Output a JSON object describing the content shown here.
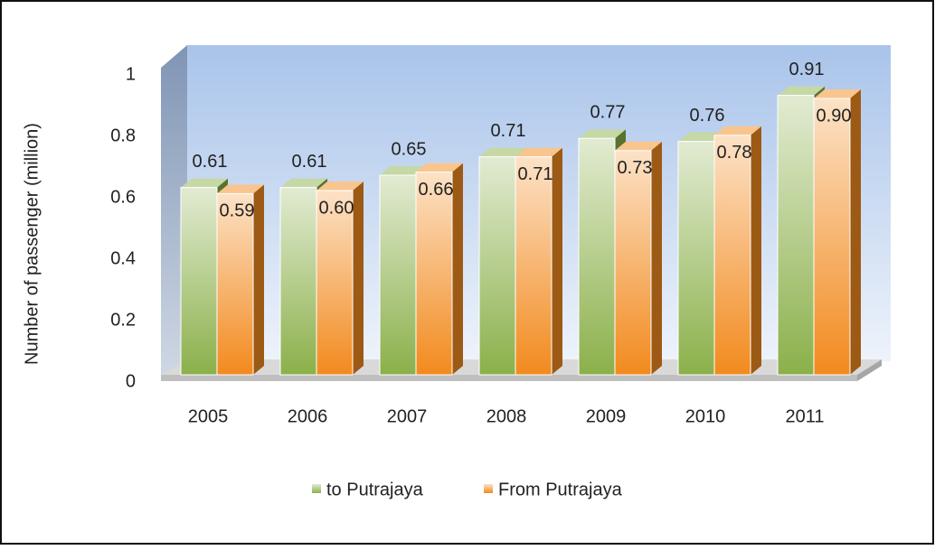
{
  "chart_data": {
    "type": "bar3d",
    "y_axis_label": "Number of passenger (million)",
    "categories": [
      "2005",
      "2006",
      "2007",
      "2008",
      "2009",
      "2010",
      "2011"
    ],
    "series": [
      {
        "name": "to Putrajaya",
        "color": "#8bb04a",
        "values": [
          0.61,
          0.61,
          0.65,
          0.71,
          0.77,
          0.76,
          0.91
        ],
        "value_labels": [
          "0.61",
          "0.61",
          "0.65",
          "0.71",
          "0.77",
          "0.76",
          "0.91"
        ]
      },
      {
        "name": "From Putrajaya",
        "color": "#f28a1e",
        "values": [
          0.59,
          0.6,
          0.66,
          0.71,
          0.73,
          0.78,
          0.9
        ],
        "value_labels": [
          "0.59",
          "0.60",
          "0.66",
          "0.71",
          "0.73",
          "0.78",
          "0.90"
        ]
      }
    ],
    "ylim": [
      0,
      1
    ],
    "yticks": [
      0,
      0.2,
      0.4,
      0.6,
      0.8,
      1
    ],
    "legend": "bottom"
  }
}
